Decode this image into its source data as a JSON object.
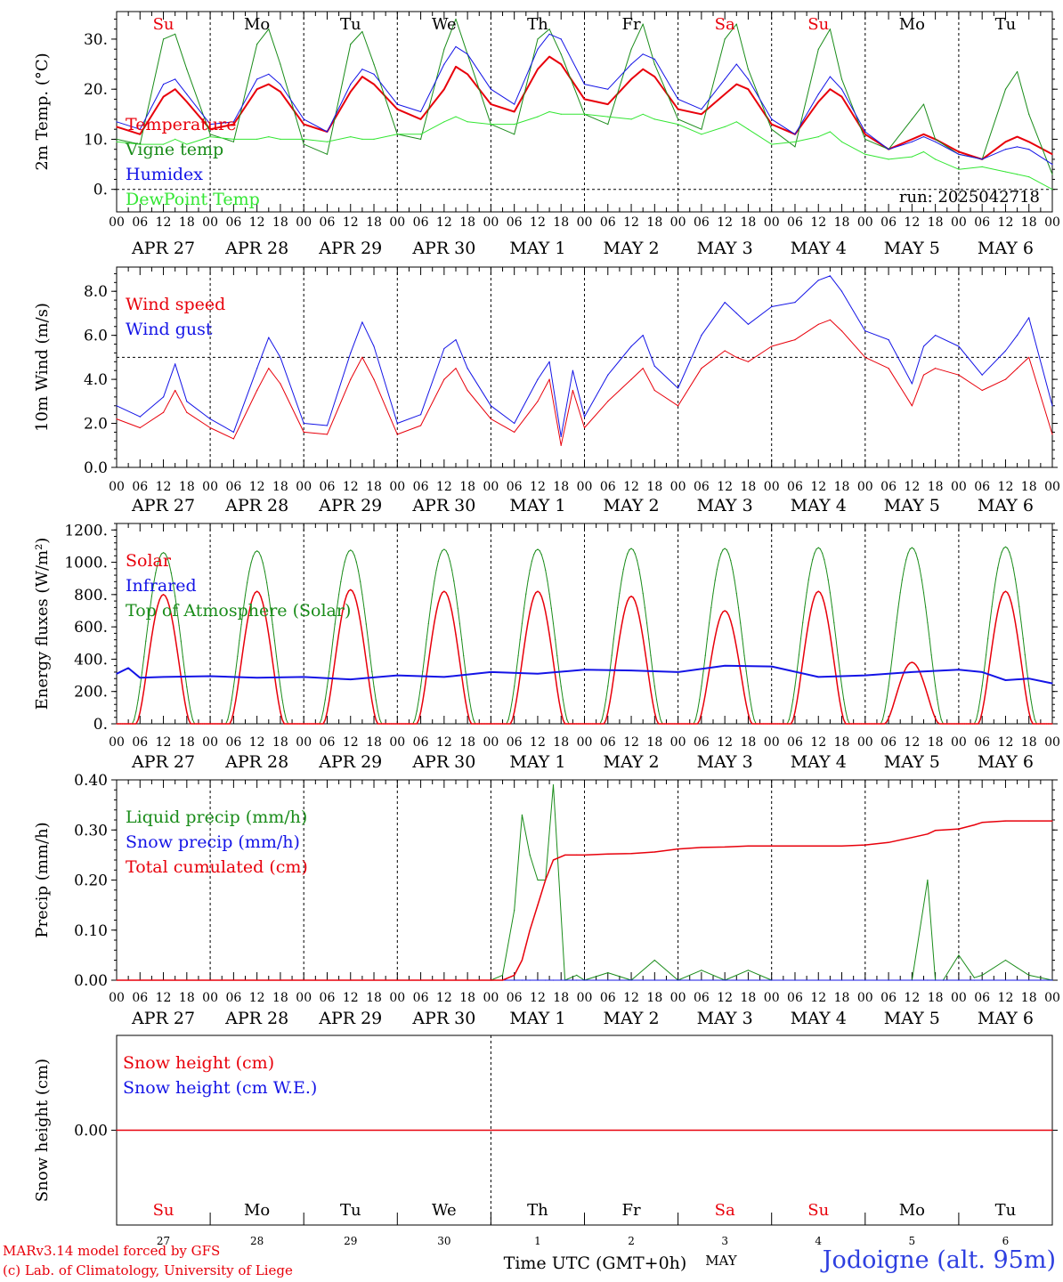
{
  "colors": {
    "red": "#e8000b",
    "blue": "#1414e6",
    "dark_green": "#1a8c1a",
    "light_green": "#33e633",
    "black": "#000000",
    "station_blue": "#2e3fe0"
  },
  "common": {
    "hour_ticks": [
      "00",
      "06",
      "12",
      "18"
    ],
    "final_hour_tick": "00",
    "date_labels": [
      "APR 27",
      "APR 28",
      "APR 29",
      "APR 30",
      "MAY  1",
      "MAY  2",
      "MAY  3",
      "MAY  4",
      "MAY  5",
      "MAY  6"
    ],
    "weekdays": [
      "Su",
      "Mo",
      "Tu",
      "We",
      "Th",
      "Fr",
      "Sa",
      "Su",
      "Mo",
      "Tu"
    ],
    "weekday_colors": [
      "red",
      "black",
      "black",
      "black",
      "black",
      "black",
      "red",
      "red",
      "black",
      "black"
    ],
    "day_numbers": [
      "27",
      "28",
      "29",
      "30",
      "1",
      "2",
      "3",
      "4",
      "5",
      "6"
    ],
    "month_label": "MAY",
    "xlabel": "Time UTC (GMT+0h)",
    "days": 10
  },
  "footer": {
    "credit_line1": "MARv3.14 model forced by GFS",
    "credit_line2": "(c) Lab. of Climatology, University of Liege",
    "station": "Jodoigne (alt. 95m)"
  },
  "chart_data": [
    {
      "type": "line",
      "id": "temperature",
      "ylabel": "2m Temp. (°C)",
      "ylim": [
        -4.5,
        35.5
      ],
      "yticks": [
        0,
        10,
        20,
        30
      ],
      "ytick_labels": [
        "0.",
        "10.",
        "20.",
        "30."
      ],
      "dashed_hline": 0,
      "run_label": "run: 2025042718",
      "x_hours": [
        0,
        6,
        12,
        15,
        18,
        24,
        30,
        36,
        39,
        42,
        48,
        54,
        60,
        63,
        66,
        72,
        78,
        84,
        87,
        90,
        96,
        102,
        108,
        111,
        114,
        120,
        126,
        132,
        135,
        138,
        144,
        150,
        156,
        159,
        162,
        168,
        174,
        180,
        183,
        186,
        192,
        198,
        204,
        207,
        210,
        216,
        222,
        228,
        231,
        234,
        240
      ],
      "series": [
        {
          "name": "Temperature",
          "color": "red",
          "width": 2,
          "values": [
            12.5,
            11,
            18.5,
            20,
            17.5,
            12,
            13,
            20,
            21,
            19.5,
            13,
            11.5,
            19.5,
            22.5,
            21,
            16,
            14,
            20,
            24.5,
            23,
            17,
            15.5,
            24,
            26.5,
            25,
            18,
            17,
            22,
            24,
            22.5,
            16,
            15,
            19,
            21,
            20,
            13,
            11,
            17.5,
            20,
            18.5,
            11,
            8,
            10,
            11,
            10,
            7.5,
            6,
            9.5,
            10.5,
            9.5,
            7
          ]
        },
        {
          "name": "Vigne temp",
          "color": "dark_green",
          "width": 1,
          "values": [
            10,
            9,
            30,
            31,
            24,
            11,
            9.5,
            29,
            32,
            25,
            9,
            7,
            29,
            31.5,
            25,
            11,
            10,
            28,
            34,
            27,
            13,
            11,
            30,
            32,
            27,
            15,
            13,
            28,
            33,
            25,
            14,
            12,
            30,
            33,
            24,
            12,
            8.5,
            28,
            32,
            22,
            10,
            8,
            14,
            17,
            10,
            7,
            6,
            20,
            23.5,
            15,
            3
          ]
        },
        {
          "name": "Humidex",
          "color": "blue",
          "width": 1,
          "values": [
            13.5,
            12,
            21,
            22,
            19,
            13,
            13.5,
            22,
            23,
            21,
            14,
            11.5,
            21,
            24,
            23,
            17,
            15.5,
            25,
            28.5,
            27,
            20,
            17,
            28,
            31,
            30,
            21,
            20,
            25,
            27,
            26,
            18,
            16,
            22,
            25,
            22,
            14,
            11,
            19,
            22.5,
            20,
            11.5,
            8,
            9.5,
            10.5,
            9.5,
            7,
            6,
            8,
            8.5,
            8,
            5
          ]
        },
        {
          "name": "DewPoint Temp",
          "color": "light_green",
          "width": 1,
          "values": [
            9.5,
            9,
            9,
            10,
            9,
            10.5,
            10,
            10,
            10.5,
            10,
            10,
            9.5,
            10.5,
            10,
            10,
            11,
            11,
            13.5,
            14.5,
            13.5,
            13,
            13,
            14.5,
            15.5,
            15,
            15,
            14.5,
            14,
            15,
            14,
            13,
            11,
            12.5,
            13.5,
            12,
            9,
            9.5,
            10.5,
            11.5,
            9.5,
            7,
            6,
            6.5,
            7.5,
            6,
            4,
            4.5,
            3.5,
            3,
            2.5,
            0
          ]
        }
      ]
    },
    {
      "type": "line",
      "id": "wind",
      "ylabel": "10m Wind (m/s)",
      "ylim": [
        0,
        9.1
      ],
      "yticks": [
        0,
        2,
        4,
        6,
        8
      ],
      "ytick_labels": [
        "0.0",
        "2.0",
        "4.0",
        "6.0",
        "8.0"
      ],
      "dashed_hline": 5,
      "x_hours": [
        0,
        6,
        12,
        15,
        18,
        24,
        30,
        36,
        39,
        42,
        48,
        54,
        60,
        63,
        66,
        72,
        78,
        84,
        87,
        90,
        96,
        102,
        108,
        111,
        114,
        117,
        120,
        126,
        132,
        135,
        138,
        144,
        150,
        156,
        159,
        162,
        168,
        174,
        180,
        183,
        186,
        192,
        198,
        204,
        207,
        210,
        216,
        222,
        228,
        231,
        234,
        240
      ],
      "series": [
        {
          "name": "Wind speed",
          "color": "red",
          "width": 1,
          "values": [
            2.2,
            1.8,
            2.5,
            3.5,
            2.5,
            1.8,
            1.3,
            3.5,
            4.5,
            3.8,
            1.6,
            1.5,
            4,
            5,
            4,
            1.5,
            1.9,
            4,
            4.5,
            3.5,
            2.2,
            1.6,
            3,
            4,
            1,
            3.5,
            1.8,
            3,
            4,
            4.5,
            3.5,
            2.8,
            4.5,
            5.3,
            5,
            4.8,
            5.5,
            5.8,
            6.5,
            6.7,
            6.2,
            5,
            4.5,
            2.8,
            4.2,
            4.5,
            4.2,
            3.5,
            4,
            4.5,
            5,
            1.5
          ]
        },
        {
          "name": "Wind gust",
          "color": "blue",
          "width": 1,
          "values": [
            2.8,
            2.3,
            3.2,
            4.7,
            3,
            2.2,
            1.6,
            4.5,
            5.9,
            5,
            2,
            1.9,
            5.2,
            6.6,
            5.5,
            2,
            2.4,
            5.4,
            5.8,
            4.5,
            2.8,
            2,
            4,
            4.8,
            1.4,
            4.4,
            2.3,
            4.2,
            5.5,
            6,
            4.6,
            3.6,
            6,
            7.5,
            7,
            6.5,
            7.3,
            7.5,
            8.5,
            8.7,
            8,
            6.2,
            5.8,
            3.8,
            5.5,
            6,
            5.5,
            4.2,
            5.3,
            6,
            6.8,
            2.8
          ]
        }
      ]
    },
    {
      "type": "line",
      "id": "energy",
      "ylabel": "Energy fluxes (W/m²)",
      "ylim": [
        0,
        1240
      ],
      "yticks": [
        0,
        200,
        400,
        600,
        800,
        1000,
        1200
      ],
      "ytick_labels": [
        "0.",
        "200.",
        "400.",
        "600.",
        "800.",
        "1000.",
        "1200."
      ],
      "daily_curves": {
        "toa_peaks": [
          1060,
          1070,
          1075,
          1080,
          1080,
          1085,
          1085,
          1090,
          1090,
          1095
        ],
        "toa_halfwidth_hours": 8,
        "solar_peaks": [
          800,
          820,
          830,
          820,
          820,
          790,
          700,
          820,
          380,
          820
        ],
        "solar_halfwidth_hours": 7,
        "day_peak_hour": 12
      },
      "x_hours": [
        0,
        3,
        6,
        12,
        24,
        36,
        48,
        60,
        72,
        84,
        96,
        108,
        120,
        132,
        144,
        156,
        168,
        180,
        192,
        204,
        216,
        222,
        228,
        234,
        240
      ],
      "series": [
        {
          "name": "Solar",
          "color": "red",
          "width": 1.5
        },
        {
          "name": "Infrared",
          "color": "blue",
          "width": 2,
          "values": [
            310,
            345,
            285,
            290,
            295,
            285,
            290,
            275,
            300,
            290,
            320,
            310,
            335,
            330,
            320,
            360,
            355,
            290,
            300,
            320,
            335,
            320,
            270,
            280,
            250
          ]
        },
        {
          "name": "Top of Atmosphere (Solar)",
          "color": "dark_green",
          "width": 1
        }
      ]
    },
    {
      "type": "line",
      "id": "precip",
      "ylabel": "Precip (mm/h)",
      "ylim": [
        0,
        0.4
      ],
      "yticks": [
        0,
        0.1,
        0.2,
        0.3,
        0.4
      ],
      "ytick_labels": [
        "0.00",
        "0.10",
        "0.20",
        "0.30",
        "0.40"
      ],
      "x_hours": [
        0,
        96,
        99,
        102,
        104,
        106,
        108,
        110,
        112,
        115,
        118,
        120,
        126,
        132,
        138,
        144,
        150,
        156,
        162,
        168,
        174,
        186,
        192,
        198,
        204,
        208,
        210,
        212,
        216,
        220,
        222,
        228,
        234,
        240
      ],
      "series": [
        {
          "name": "Liquid precip (mm/h)",
          "color": "dark_green",
          "width": 1,
          "values": [
            0,
            0,
            0.01,
            0.14,
            0.33,
            0.25,
            0.2,
            0.2,
            0.39,
            0,
            0.01,
            0,
            0.015,
            0,
            0.04,
            0,
            0.02,
            0,
            0.02,
            0,
            0,
            0,
            0,
            0,
            0,
            0.2,
            0,
            0,
            0.05,
            0.005,
            0.01,
            0.04,
            0.01,
            0
          ]
        },
        {
          "name": "Snow precip (mm/h)",
          "color": "blue",
          "width": 1,
          "values": [
            0,
            0,
            0,
            0,
            0,
            0,
            0,
            0,
            0,
            0,
            0,
            0,
            0,
            0,
            0,
            0,
            0,
            0,
            0,
            0,
            0,
            0,
            0,
            0,
            0,
            0,
            0,
            0,
            0,
            0,
            0,
            0,
            0,
            0
          ]
        },
        {
          "name": "Total cumulated (cm)",
          "color": "red",
          "width": 1.5,
          "values": [
            0,
            0,
            0,
            0.01,
            0.04,
            0.1,
            0.15,
            0.2,
            0.24,
            0.25,
            0.25,
            0.25,
            0.252,
            0.253,
            0.256,
            0.262,
            0.265,
            0.266,
            0.268,
            0.268,
            0.268,
            0.268,
            0.27,
            0.275,
            0.285,
            0.292,
            0.299,
            0.3,
            0.302,
            0.31,
            0.315,
            0.318,
            0.318,
            0.318
          ]
        }
      ]
    },
    {
      "type": "line",
      "id": "snow",
      "ylabel": "Snow height (cm)",
      "ylim": [
        -1,
        1
      ],
      "yticks": [
        0
      ],
      "ytick_labels": [
        "0.00"
      ],
      "x_hours": [
        0,
        240
      ],
      "series": [
        {
          "name": "Snow height (cm)",
          "color": "red",
          "width": 1.5,
          "values": [
            0,
            0
          ]
        },
        {
          "name": "Snow height (cm W.E.)",
          "color": "blue",
          "width": 1
        }
      ]
    }
  ]
}
